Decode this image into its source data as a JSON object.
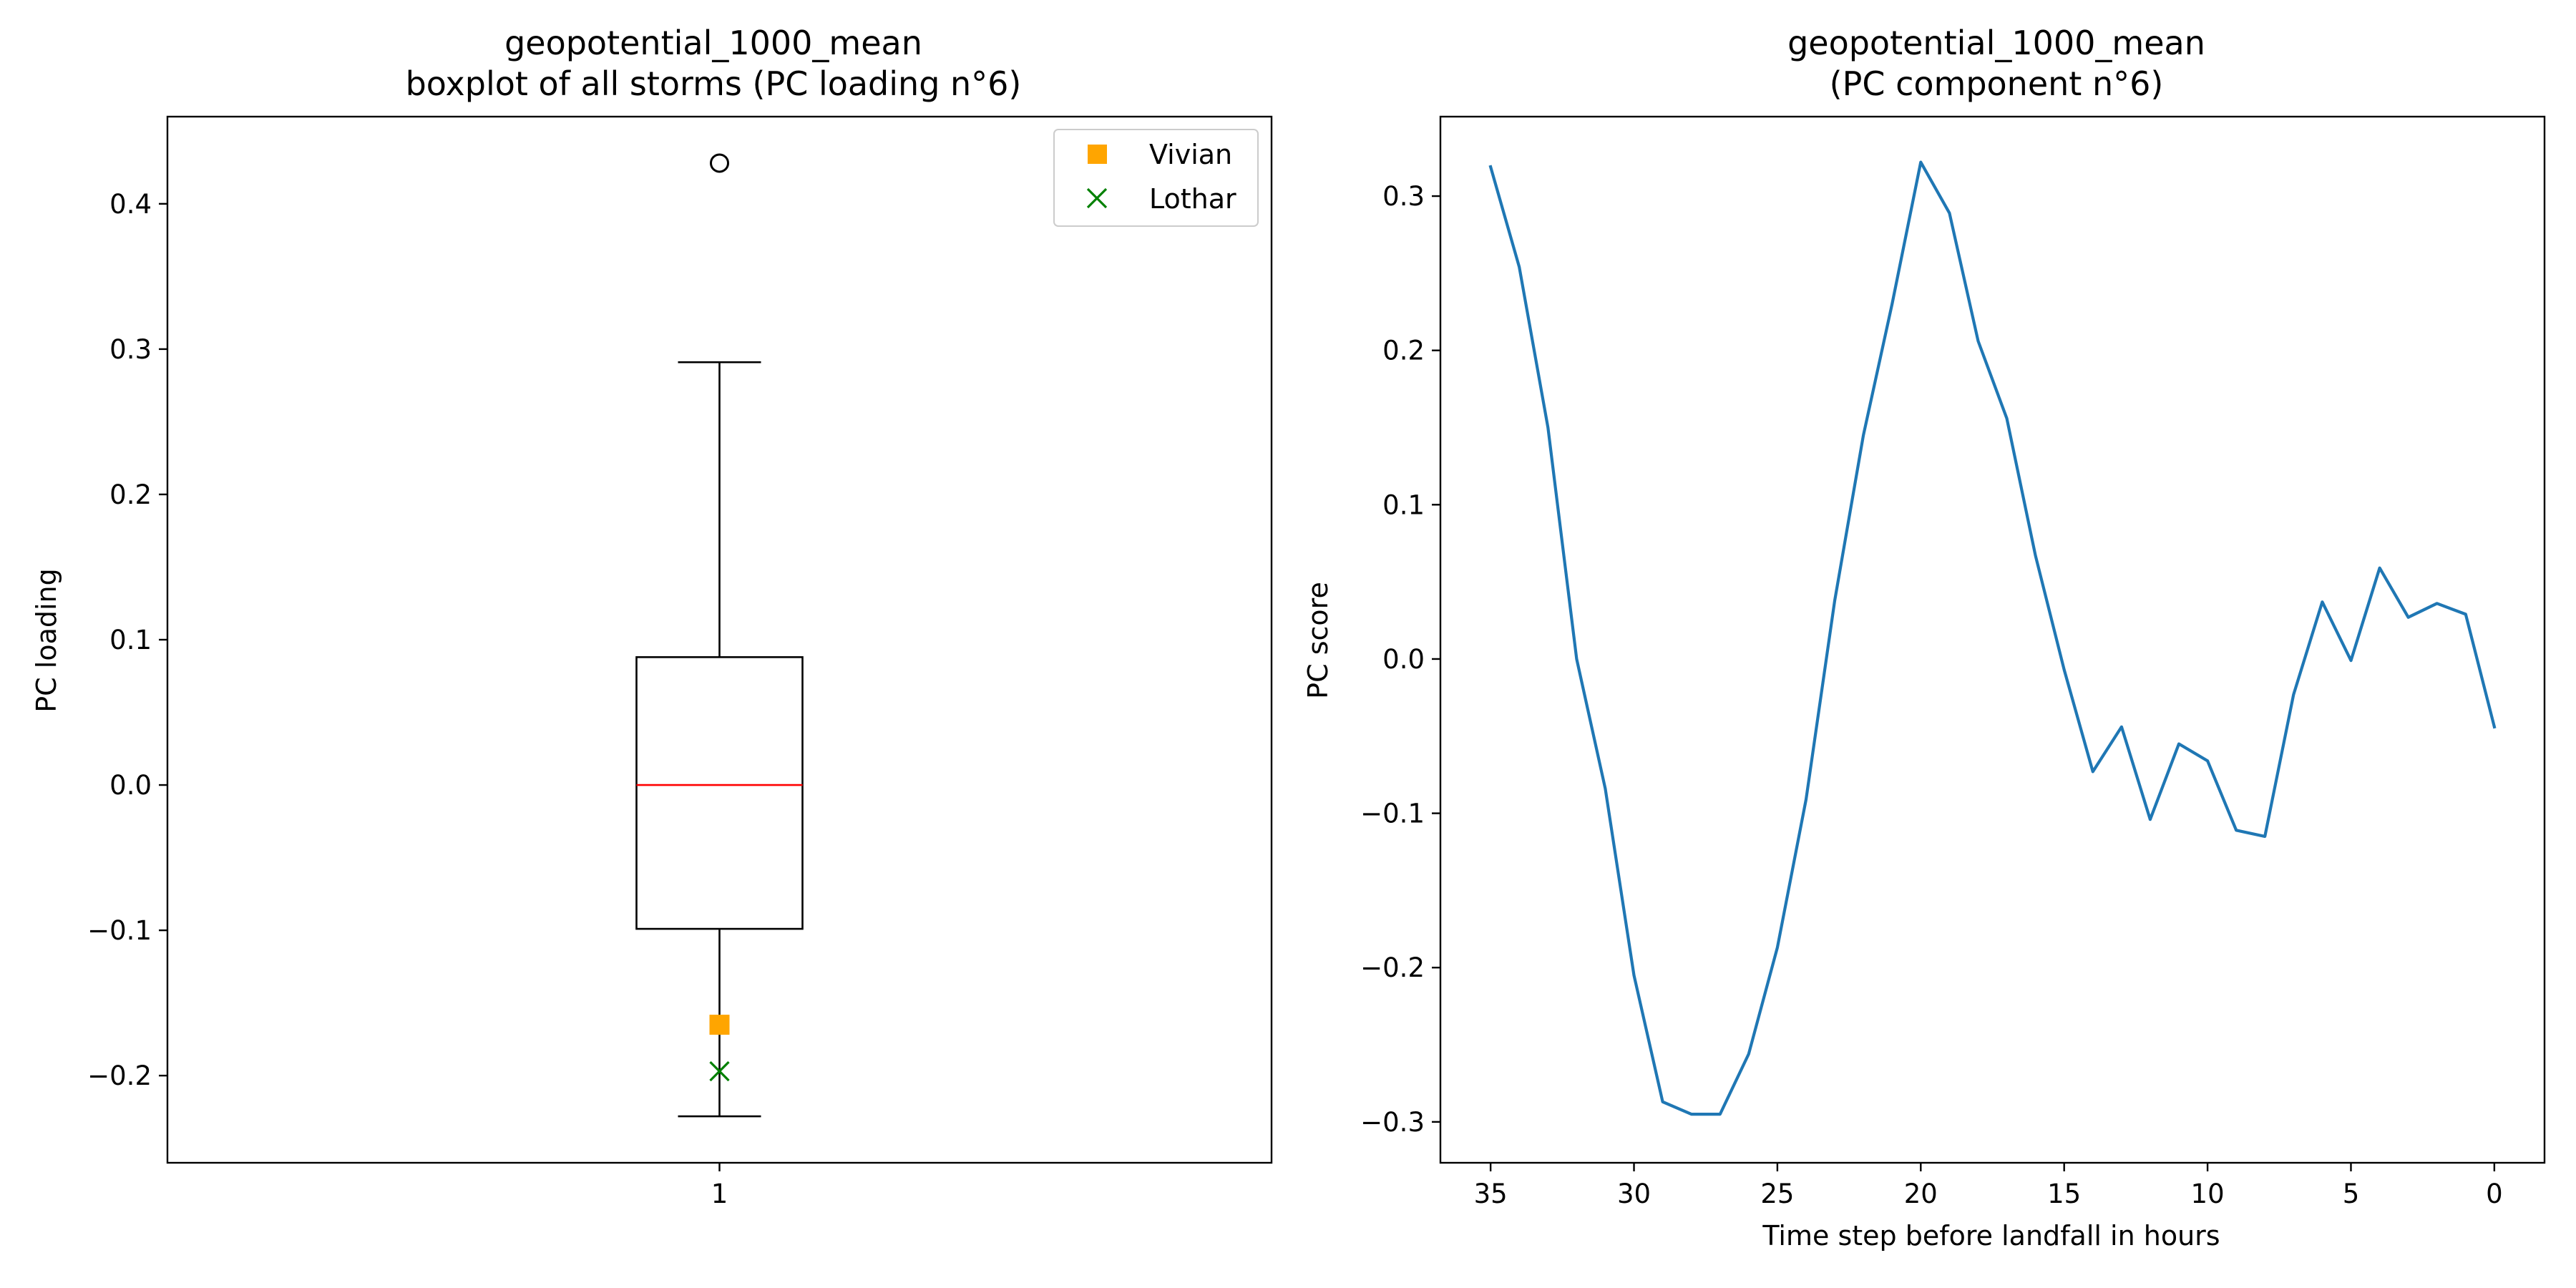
{
  "chart_data": [
    {
      "type": "boxplot",
      "title": "geopotential_1000_mean",
      "subtitle": "boxplot of all storms (PC loading n°6)",
      "xlabel": "",
      "ylabel": "PC loading",
      "xticks": [
        "1"
      ],
      "yticks": [
        -0.2,
        -0.1,
        0.0,
        0.1,
        0.2,
        0.3,
        0.4
      ],
      "ylim": [
        -0.26,
        0.46
      ],
      "box": {
        "category": "1",
        "whisker_low": -0.228,
        "q1": -0.099,
        "median": 0.0,
        "q3": 0.088,
        "whisker_high": 0.291,
        "outliers": [
          0.428
        ]
      },
      "markers": [
        {
          "name": "Vivian",
          "y": -0.165,
          "symbol": "square",
          "color": "#ffa500"
        },
        {
          "name": "Lothar",
          "y": -0.197,
          "symbol": "x",
          "color": "#008000"
        }
      ],
      "legend": {
        "position": "top-right",
        "entries": [
          "Vivian",
          "Lothar"
        ]
      },
      "colors": {
        "median": "#ff0000",
        "box": "#000000"
      },
      "grid": false
    },
    {
      "type": "line",
      "title": "geopotential_1000_mean",
      "subtitle": "(PC component n°6)",
      "xlabel": "Time step before landfall in hours",
      "ylabel": "PC score",
      "xlim": [
        36.75,
        -1.75
      ],
      "ylim": [
        -0.3265,
        0.3515
      ],
      "xticks": [
        35,
        30,
        25,
        20,
        15,
        10,
        5,
        0
      ],
      "yticks": [
        -0.3,
        -0.2,
        -0.1,
        0.0,
        0.1,
        0.2,
        0.3
      ],
      "grid": false,
      "series": [
        {
          "color": "#1f77b4",
          "x": [
            35,
            34,
            33,
            32,
            31,
            30,
            29,
            28,
            27,
            26,
            25,
            24,
            23,
            22,
            21,
            20,
            19,
            18,
            17,
            16,
            15,
            14,
            13,
            12,
            11,
            10,
            9,
            8,
            7,
            6,
            5,
            4,
            3,
            2,
            1,
            0
          ],
          "y": [
            0.319,
            0.254,
            0.15,
            0.0,
            -0.084,
            -0.205,
            -0.287,
            -0.295,
            -0.295,
            -0.256,
            -0.187,
            -0.091,
            0.038,
            0.145,
            0.23,
            0.322,
            0.289,
            0.206,
            0.156,
            0.067,
            -0.007,
            -0.073,
            -0.044,
            -0.104,
            -0.055,
            -0.066,
            -0.111,
            -0.115,
            -0.023,
            0.037,
            -0.001,
            0.059,
            0.027,
            0.036,
            0.029,
            -0.044
          ]
        }
      ]
    }
  ]
}
